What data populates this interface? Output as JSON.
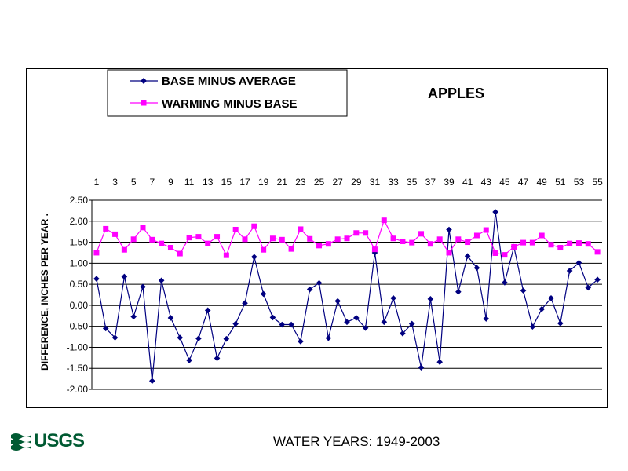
{
  "chart_data": {
    "type": "line",
    "title": "APPLES",
    "ylabel": "DIFFERENCE, INCHES PER YEAR  .",
    "xlabel": "",
    "x": [
      1,
      2,
      3,
      4,
      5,
      6,
      7,
      8,
      9,
      10,
      11,
      12,
      13,
      14,
      15,
      16,
      17,
      18,
      19,
      20,
      21,
      22,
      23,
      24,
      25,
      26,
      27,
      28,
      29,
      30,
      31,
      32,
      33,
      34,
      35,
      36,
      37,
      38,
      39,
      40,
      41,
      42,
      43,
      44,
      45,
      46,
      47,
      48,
      49,
      50,
      51,
      52,
      53,
      54,
      55
    ],
    "x_tick_labels": [
      "1",
      "3",
      "5",
      "7",
      "9",
      "11",
      "13",
      "15",
      "17",
      "19",
      "21",
      "23",
      "25",
      "27",
      "29",
      "31",
      "33",
      "35",
      "37",
      "39",
      "41",
      "43",
      "45",
      "47",
      "49",
      "51",
      "53",
      "55"
    ],
    "ylim": [
      -2.0,
      2.5
    ],
    "y_tick_labels": [
      "2.50",
      "2.00",
      "1.50",
      "1.00",
      "0.50",
      "0.00",
      "-0.50",
      "-1.00",
      "-1.50",
      "-2.00"
    ],
    "grid": "horizontal",
    "legend_position": "top-left",
    "series": [
      {
        "name": "BASE MINUS AVERAGE",
        "color": "#000080",
        "marker": "diamond",
        "values": [
          0.63,
          -0.55,
          -0.77,
          0.68,
          -0.27,
          0.44,
          -1.8,
          0.59,
          -0.3,
          -0.77,
          -1.31,
          -0.79,
          -0.12,
          -1.26,
          -0.8,
          -0.44,
          0.05,
          1.15,
          0.27,
          -0.29,
          -0.46,
          -0.46,
          -0.86,
          0.38,
          0.53,
          -0.78,
          0.1,
          -0.4,
          -0.3,
          -0.54,
          1.25,
          -0.4,
          0.17,
          -0.67,
          -0.44,
          -1.48,
          0.15,
          -1.35,
          1.8,
          0.32,
          1.17,
          0.89,
          -0.32,
          2.22,
          0.54,
          1.39,
          0.35,
          -0.51,
          -0.09,
          0.17,
          -0.43,
          0.82,
          1.01,
          0.42,
          0.61
        ]
      },
      {
        "name": "WARMING MINUS BASE",
        "color": "#ff00ff",
        "marker": "square",
        "values": [
          1.25,
          1.82,
          1.69,
          1.32,
          1.57,
          1.85,
          1.56,
          1.47,
          1.37,
          1.23,
          1.61,
          1.63,
          1.47,
          1.63,
          1.19,
          1.8,
          1.57,
          1.88,
          1.32,
          1.59,
          1.56,
          1.34,
          1.81,
          1.58,
          1.42,
          1.46,
          1.57,
          1.59,
          1.72,
          1.72,
          1.33,
          2.02,
          1.59,
          1.52,
          1.49,
          1.7,
          1.46,
          1.57,
          1.25,
          1.57,
          1.5,
          1.66,
          1.79,
          1.24,
          1.2,
          1.39,
          1.49,
          1.49,
          1.66,
          1.44,
          1.37,
          1.47,
          1.48,
          1.46,
          1.27
        ]
      }
    ]
  },
  "footer": {
    "caption": "WATER YEARS: 1949-2003",
    "logo_text": "USGS"
  }
}
